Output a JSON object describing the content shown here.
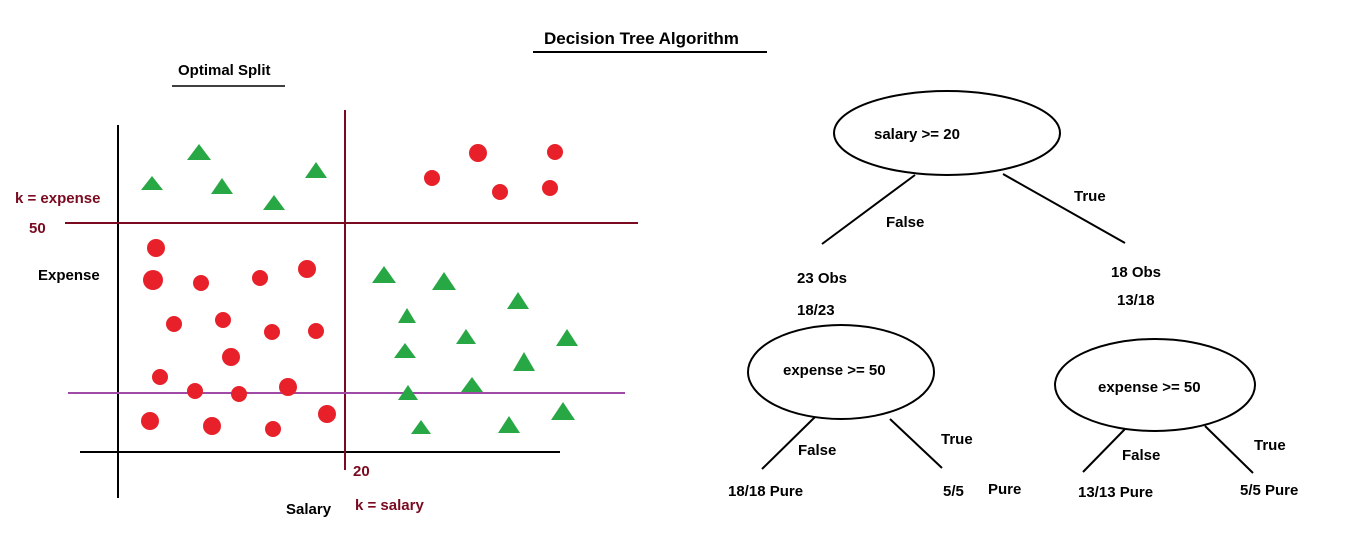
{
  "title": "Decision Tree Algorithm",
  "colors": {
    "maroon": "#7a0a20",
    "purple": "#a04aa8",
    "red_circle": "#e8202a",
    "green_triangle": "#28a745",
    "ink": "#000000"
  },
  "split_panel": {
    "title": "Optimal Split",
    "y_axis_label": "Expense",
    "x_axis_label": "Salary",
    "expense_split_label": "k = expense",
    "expense_split_value": "50",
    "salary_split_label": "k = salary",
    "salary_split_value": "20",
    "point_shapes": [
      "circle",
      "triangle"
    ]
  },
  "tree": {
    "root": {
      "condition": "salary >= 20",
      "false_edge": "False",
      "true_edge": "True"
    },
    "left_branch": {
      "obs": "23 Obs",
      "ratio": "18/23",
      "condition": "expense >= 50",
      "false_edge": "False",
      "true_edge": "True",
      "false_leaf": "18/18 Pure",
      "true_leaf_ratio": "5/5",
      "true_leaf_pure": "Pure"
    },
    "right_branch": {
      "obs": "18 Obs",
      "ratio": "13/18",
      "condition": "expense >= 50",
      "false_edge": "False",
      "true_edge": "True",
      "false_leaf": "13/13 Pure",
      "true_leaf": "5/5 Pure"
    }
  }
}
